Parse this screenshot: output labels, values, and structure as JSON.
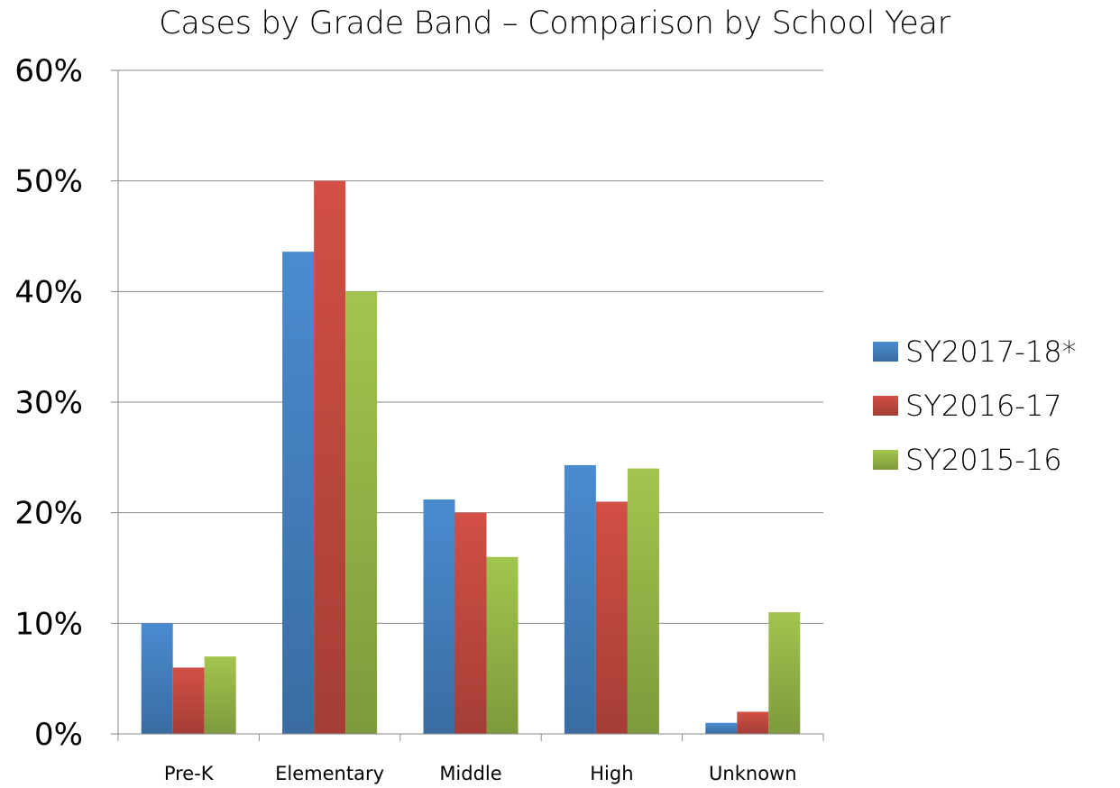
{
  "chart_data": {
    "type": "bar",
    "title": "Cases by Grade Band – Comparison by School Year",
    "categories": [
      "Pre-K",
      "Elementary",
      "Middle",
      "High",
      "Unknown"
    ],
    "series": [
      {
        "name": "SY2017-18*",
        "values": [
          10,
          43.6,
          21.2,
          24.3,
          1
        ],
        "color": "#4a8bd0"
      },
      {
        "name": "SY2016-17",
        "values": [
          6,
          50,
          20,
          21,
          2
        ],
        "color": "#d24f45"
      },
      {
        "name": "SY2015-16",
        "values": [
          7,
          40,
          16,
          24,
          11
        ],
        "color": "#a2c54e"
      }
    ],
    "ylim": [
      0,
      60
    ],
    "yticks": [
      "0%",
      "10%",
      "20%",
      "30%",
      "40%",
      "50%",
      "60%"
    ],
    "grid": true,
    "legend_position": "right"
  }
}
